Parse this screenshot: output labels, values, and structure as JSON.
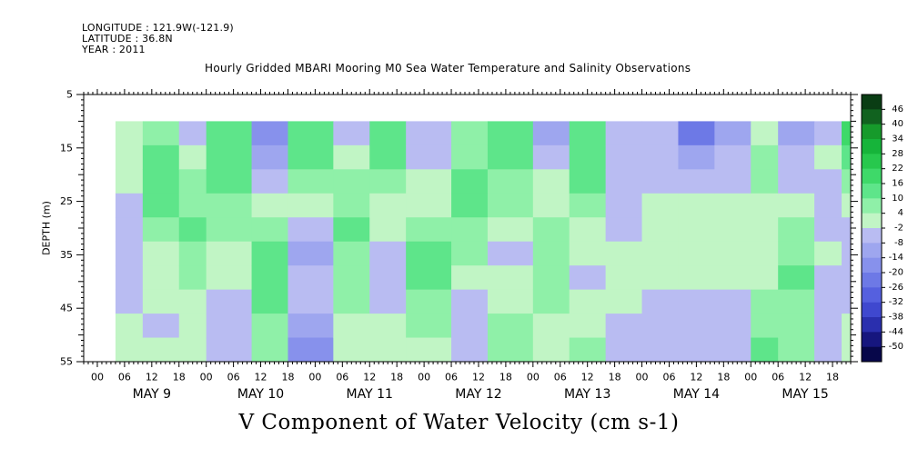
{
  "header": {
    "longitude": "LONGITUDE : 121.9W(-121.9)",
    "latitude": "LATITUDE : 36.8N",
    "year": "YEAR : 2011",
    "title": "Hourly Gridded MBARI Mooring M0 Sea Water Temperature and Salinity Observations"
  },
  "chart_data": {
    "type": "heatmap",
    "title": "Hourly Gridded MBARI Mooring M0 Sea Water Temperature and Salinity Observations",
    "subtitle": "V Component of Water Velocity (cm s-1)",
    "ylabel": "DEPTH (m)",
    "ylim": [
      5,
      55
    ],
    "y_inverted": true,
    "y_ticks": [
      5,
      15,
      25,
      35,
      45,
      55
    ],
    "x_hour_labels": [
      "00",
      "06",
      "12",
      "18",
      "00",
      "06",
      "12",
      "18",
      "00",
      "06",
      "12",
      "18",
      "00",
      "06",
      "12",
      "18",
      "00",
      "06",
      "12",
      "18",
      "00",
      "06",
      "12",
      "18",
      "00",
      "06",
      "12",
      "18"
    ],
    "x_day_labels": [
      "MAY  9",
      "MAY 10",
      "MAY 11",
      "MAY 12",
      "MAY 13",
      "MAY 14",
      "MAY 15"
    ],
    "xlim": [
      "2011-05-08T21:00",
      "2011-05-15T22:00"
    ],
    "data_extent": {
      "x_start": "2011-05-09T04:00",
      "depth_start": 10,
      "depth_end": 55
    },
    "colorbar": {
      "levels": [
        46,
        40,
        34,
        28,
        22,
        16,
        10,
        4,
        -2,
        -8,
        -14,
        -20,
        -26,
        -32,
        -38,
        -44,
        -50
      ],
      "colors": [
        "#0a3d14",
        "#11621f",
        "#169a2b",
        "#16b43a",
        "#27c84d",
        "#3ed969",
        "#5ee58a",
        "#8ff0a8",
        "#c1f5c5",
        "#b9bcf2",
        "#9ea6ef",
        "#8791ec",
        "#6d79e6",
        "#5560df",
        "#3f48cf",
        "#2a2fae",
        "#16167e",
        "#07074a"
      ]
    },
    "columns": [
      {
        "x": "2011-05-09T04:00",
        "depth_profile": [
          2,
          0,
          -2,
          -6,
          -8,
          -8,
          -6,
          -4,
          -2,
          0
        ]
      },
      {
        "x": "2011-05-09T10:00",
        "depth_profile": [
          8,
          12,
          14,
          10,
          6,
          2,
          0,
          -2,
          -4,
          -2
        ]
      },
      {
        "x": "2011-05-09T18:00",
        "depth_profile": [
          -4,
          -2,
          4,
          8,
          10,
          8,
          4,
          2,
          0,
          2
        ]
      },
      {
        "x": "2011-05-10T00:00",
        "depth_profile": [
          10,
          14,
          12,
          8,
          4,
          0,
          -2,
          -4,
          -6,
          -4
        ]
      },
      {
        "x": "2011-05-10T10:00",
        "depth_profile": [
          -20,
          -10,
          -4,
          2,
          6,
          10,
          12,
          10,
          8,
          6
        ]
      },
      {
        "x": "2011-05-10T18:00",
        "depth_profile": [
          14,
          12,
          6,
          0,
          -6,
          -10,
          -8,
          -6,
          -10,
          -16
        ]
      },
      {
        "x": "2011-05-11T04:00",
        "depth_profile": [
          -6,
          -2,
          4,
          8,
          10,
          8,
          6,
          4,
          2,
          0
        ]
      },
      {
        "x": "2011-05-11T12:00",
        "depth_profile": [
          12,
          10,
          6,
          2,
          -2,
          -6,
          -8,
          -6,
          -2,
          2
        ]
      },
      {
        "x": "2011-05-11T20:00",
        "depth_profile": [
          -8,
          -6,
          -2,
          2,
          6,
          10,
          12,
          8,
          4,
          2
        ]
      },
      {
        "x": "2011-05-12T06:00",
        "depth_profile": [
          4,
          8,
          10,
          12,
          8,
          4,
          0,
          -4,
          -6,
          -4
        ]
      },
      {
        "x": "2011-05-12T14:00",
        "depth_profile": [
          14,
          12,
          8,
          4,
          0,
          -4,
          -2,
          2,
          6,
          4
        ]
      },
      {
        "x": "2011-05-13T00:00",
        "depth_profile": [
          -10,
          -6,
          -2,
          2,
          6,
          8,
          6,
          4,
          2,
          0
        ]
      },
      {
        "x": "2011-05-13T08:00",
        "depth_profile": [
          12,
          14,
          10,
          6,
          2,
          -2,
          -4,
          -2,
          2,
          4
        ]
      },
      {
        "x": "2011-05-13T16:00",
        "depth_profile": [
          -4,
          -6,
          -8,
          -6,
          -4,
          -2,
          0,
          -2,
          -4,
          -6
        ]
      },
      {
        "x": "2011-05-14T00:00",
        "depth_profile": [
          -8,
          -6,
          -4,
          2,
          2,
          2,
          2,
          -4,
          -6,
          -8
        ]
      },
      {
        "x": "2011-05-14T08:00",
        "depth_profile": [
          -26,
          -14,
          -8,
          0,
          2,
          2,
          2,
          -4,
          -6,
          -6
        ]
      },
      {
        "x": "2011-05-14T16:00",
        "depth_profile": [
          -12,
          -8,
          -6,
          0,
          2,
          2,
          0,
          -6,
          -8,
          -8
        ]
      },
      {
        "x": "2011-05-15T00:00",
        "depth_profile": [
          2,
          6,
          4,
          2,
          0,
          -2,
          2,
          6,
          8,
          10
        ]
      },
      {
        "x": "2011-05-15T06:00",
        "depth_profile": [
          -14,
          -8,
          -4,
          -2,
          4,
          8,
          10,
          8,
          6,
          4
        ]
      },
      {
        "x": "2011-05-15T14:00",
        "depth_profile": [
          -4,
          -2,
          -4,
          -6,
          -4,
          -2,
          -6,
          -8,
          -6,
          -4
        ]
      },
      {
        "x": "2011-05-15T20:00",
        "depth_profile": [
          16,
          10,
          4,
          -2,
          -6,
          -8,
          -6,
          -4,
          -2,
          -2
        ]
      }
    ]
  }
}
